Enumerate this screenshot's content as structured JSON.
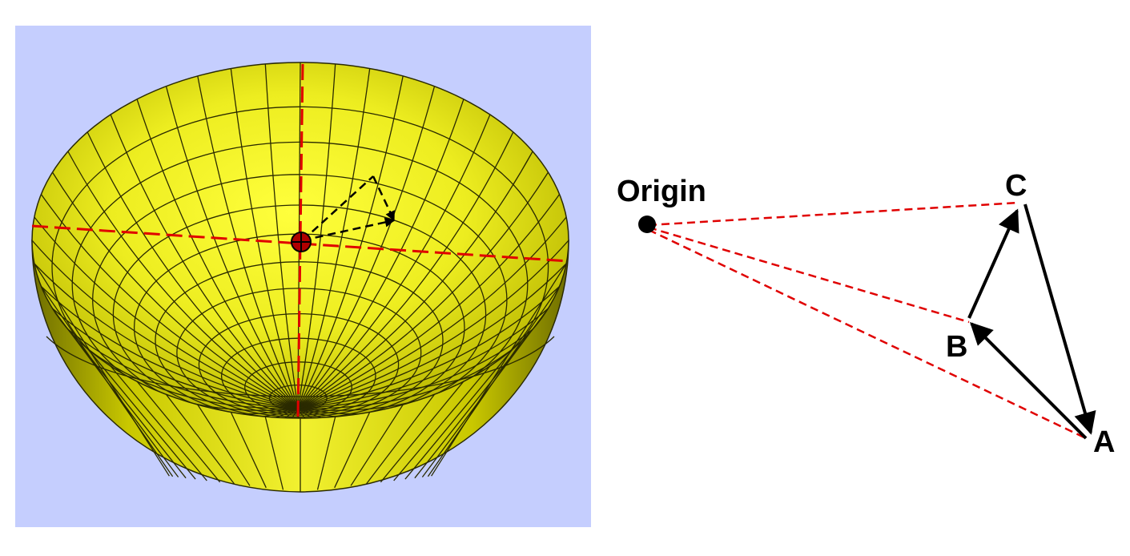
{
  "labels": {
    "origin": "Origin",
    "a": "A",
    "b": "B",
    "c": "C"
  },
  "colors": {
    "viewport_background": "#c5cefe",
    "bowl_fill_light": "#ffff3c",
    "bowl_fill_mid": "#e9e81a",
    "bowl_fill_dark": "#6b6a00",
    "mesh_lines": "#2a2a00",
    "axis_lines": "#e00000",
    "triangle_edges": "#000000",
    "projection_lines": "#e00000"
  }
}
